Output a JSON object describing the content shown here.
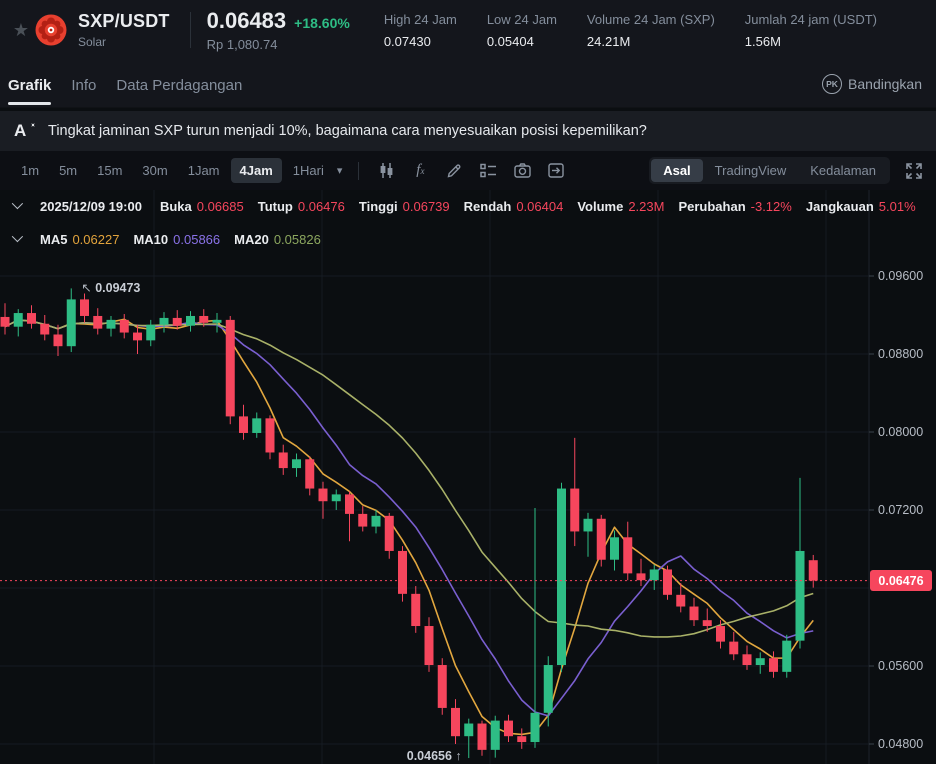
{
  "header": {
    "symbol": "SXP/USDT",
    "coin_name": "Solar",
    "price": "0.06483",
    "change_pct": "+18.60%",
    "price_fiat": "Rp 1,080.74",
    "stats": [
      {
        "label": "High 24 Jam",
        "value": "0.07430"
      },
      {
        "label": "Low 24 Jam",
        "value": "0.05404"
      },
      {
        "label": "Volume 24 Jam (SXP)",
        "value": "24.21M"
      },
      {
        "label": "Jumlah 24 jam (USDT)",
        "value": "1.56M"
      }
    ]
  },
  "tabs": {
    "items": [
      "Grafik",
      "Info",
      "Data Perdagangan"
    ],
    "active": "Grafik",
    "compare_badge": "PK",
    "compare_label": "Bandingkan"
  },
  "ai_bar": {
    "question": "Tingkat jaminan SXP turun menjadi 10%, bagaimana cara menyesuaikan posisi kepemilikan?"
  },
  "toolbar": {
    "timeframes": [
      "1m",
      "5m",
      "15m",
      "30m",
      "1Jam",
      "4Jam",
      "1Hari"
    ],
    "active_timeframe": "4Jam",
    "icons": [
      "chart-style",
      "indicators-fx",
      "draw",
      "settings-list",
      "screenshot",
      "goto-date"
    ],
    "views": [
      "Asal",
      "TradingView",
      "Kedalaman"
    ],
    "active_view": "Asal"
  },
  "ohlc_row": {
    "datetime": "2025/12/09 19:00",
    "fields": [
      {
        "label": "Buka",
        "value": "0.06685"
      },
      {
        "label": "Tutup",
        "value": "0.06476"
      },
      {
        "label": "Tinggi",
        "value": "0.06739"
      },
      {
        "label": "Rendah",
        "value": "0.06404"
      },
      {
        "label": "Volume",
        "value": "2.23M"
      },
      {
        "label": "Perubahan",
        "value": "-3.12%"
      },
      {
        "label": "Jangkauan",
        "value": "5.01%"
      }
    ],
    "value_color": "#F6465D"
  },
  "ma_row": {
    "items": [
      {
        "label": "MA5",
        "value": "0.06227",
        "color": "#E2A33C"
      },
      {
        "label": "MA10",
        "value": "0.05866",
        "color": "#8A72E8"
      },
      {
        "label": "MA20",
        "value": "0.05826",
        "color": "#8CA75F"
      }
    ]
  },
  "chart_data": {
    "type": "candlestick",
    "interval": "4Jam",
    "grid": true,
    "y_axis_labels": [
      "0.09600",
      "0.08800",
      "0.08000",
      "0.07200",
      "0.05600",
      "0.04800"
    ],
    "y_ticks": [
      0.096,
      0.088,
      0.08,
      0.072,
      0.064,
      0.056,
      0.048
    ],
    "ylim": [
      0.046,
      0.0965
    ],
    "last_price": 0.06476,
    "last_price_label": "0.06476",
    "high_marker": {
      "value": 0.09473,
      "label": "0.09473"
    },
    "low_marker": {
      "value": 0.04656,
      "label": "0.04656"
    },
    "up_color": "#2EBD85",
    "down_color": "#F6465D",
    "ma": [
      {
        "period": 5,
        "color": "#E2A73F"
      },
      {
        "period": 10,
        "color": "#7A5FD0"
      },
      {
        "period": 20,
        "color": "#A9B168"
      }
    ],
    "ohlc": [
      [
        0.0918,
        0.0932,
        0.09,
        0.0908
      ],
      [
        0.0908,
        0.0926,
        0.0898,
        0.0922
      ],
      [
        0.0922,
        0.093,
        0.0906,
        0.0911
      ],
      [
        0.0911,
        0.092,
        0.0894,
        0.09
      ],
      [
        0.09,
        0.091,
        0.0878,
        0.0888
      ],
      [
        0.0888,
        0.09473,
        0.0882,
        0.0936
      ],
      [
        0.0936,
        0.0942,
        0.0912,
        0.0919
      ],
      [
        0.0919,
        0.0927,
        0.09,
        0.0906
      ],
      [
        0.0906,
        0.0919,
        0.0898,
        0.0915
      ],
      [
        0.0915,
        0.0921,
        0.0896,
        0.0902
      ],
      [
        0.0902,
        0.091,
        0.088,
        0.0894
      ],
      [
        0.0894,
        0.0915,
        0.0888,
        0.091
      ],
      [
        0.091,
        0.0923,
        0.0902,
        0.0917
      ],
      [
        0.0917,
        0.0925,
        0.0905,
        0.0909
      ],
      [
        0.0909,
        0.0924,
        0.0903,
        0.0919
      ],
      [
        0.0919,
        0.0926,
        0.0908,
        0.0912
      ],
      [
        0.0912,
        0.0922,
        0.0902,
        0.0915
      ],
      [
        0.0915,
        0.0919,
        0.0808,
        0.0816
      ],
      [
        0.0816,
        0.0828,
        0.0792,
        0.0799
      ],
      [
        0.0799,
        0.082,
        0.0794,
        0.0814
      ],
      [
        0.0814,
        0.0817,
        0.0772,
        0.0779
      ],
      [
        0.0779,
        0.0787,
        0.0756,
        0.0763
      ],
      [
        0.0763,
        0.0778,
        0.0754,
        0.0772
      ],
      [
        0.0772,
        0.0775,
        0.0735,
        0.0742
      ],
      [
        0.0742,
        0.0749,
        0.0711,
        0.0729
      ],
      [
        0.0729,
        0.0741,
        0.072,
        0.0736
      ],
      [
        0.0736,
        0.0739,
        0.0688,
        0.0716
      ],
      [
        0.0716,
        0.0724,
        0.0698,
        0.0703
      ],
      [
        0.0703,
        0.072,
        0.0696,
        0.0714
      ],
      [
        0.0714,
        0.0717,
        0.067,
        0.0678
      ],
      [
        0.0678,
        0.0683,
        0.0626,
        0.0634
      ],
      [
        0.0634,
        0.0642,
        0.0594,
        0.0601
      ],
      [
        0.0601,
        0.061,
        0.0554,
        0.0561
      ],
      [
        0.0561,
        0.0568,
        0.051,
        0.0517
      ],
      [
        0.0517,
        0.0526,
        0.048,
        0.0488
      ],
      [
        0.0488,
        0.0506,
        0.04656,
        0.0501
      ],
      [
        0.0501,
        0.0504,
        0.0468,
        0.0474
      ],
      [
        0.0474,
        0.0509,
        0.0466,
        0.0504
      ],
      [
        0.0504,
        0.051,
        0.0482,
        0.0488
      ],
      [
        0.0488,
        0.0496,
        0.0475,
        0.0482
      ],
      [
        0.0482,
        0.0722,
        0.0476,
        0.0512
      ],
      [
        0.0512,
        0.057,
        0.0498,
        0.0561
      ],
      [
        0.0561,
        0.0748,
        0.0554,
        0.0742
      ],
      [
        0.0742,
        0.0794,
        0.0683,
        0.0698
      ],
      [
        0.0698,
        0.0717,
        0.0672,
        0.0711
      ],
      [
        0.0711,
        0.0715,
        0.0662,
        0.0669
      ],
      [
        0.0669,
        0.0699,
        0.0658,
        0.0692
      ],
      [
        0.0692,
        0.0708,
        0.0648,
        0.0655
      ],
      [
        0.0655,
        0.067,
        0.0642,
        0.0648
      ],
      [
        0.0648,
        0.0664,
        0.0638,
        0.0659
      ],
      [
        0.0659,
        0.0663,
        0.0628,
        0.0633
      ],
      [
        0.0633,
        0.0645,
        0.0615,
        0.0621
      ],
      [
        0.0621,
        0.063,
        0.0601,
        0.0607
      ],
      [
        0.0607,
        0.0619,
        0.0595,
        0.0601
      ],
      [
        0.0601,
        0.0607,
        0.0578,
        0.0585
      ],
      [
        0.0585,
        0.0595,
        0.0566,
        0.0572
      ],
      [
        0.0572,
        0.0581,
        0.0556,
        0.0561
      ],
      [
        0.0561,
        0.0574,
        0.0552,
        0.0568
      ],
      [
        0.0568,
        0.0575,
        0.0548,
        0.0554
      ],
      [
        0.0554,
        0.0592,
        0.0548,
        0.0586
      ],
      [
        0.0586,
        0.0753,
        0.0578,
        0.0678
      ],
      [
        0.06685,
        0.06739,
        0.06404,
        0.06476
      ]
    ]
  }
}
